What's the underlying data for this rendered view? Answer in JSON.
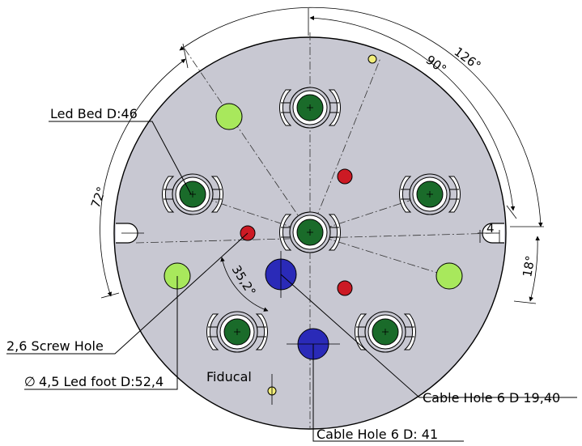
{
  "title": "",
  "plate": {
    "fill_color": "#c8c8d2",
    "outline_color": "#000000"
  },
  "colors": {
    "led_bed_green": "#1a6b2a",
    "led_foot_lightgreen": "#a8e85c",
    "screw_red": "#cc1a24",
    "cable_blue": "#2a2ab8",
    "fiducial_yellow": "#f2ee7a"
  },
  "labels": {
    "led_bed": "Led Bed D:46",
    "screw_hole": "2,6 Screw Hole",
    "led_foot": "4,5 Led foot D:52,4",
    "led_foot_symbol": "∅",
    "fiducial": "Fiducal",
    "cable_hole_a": "Cable Hole 6 D 19,40",
    "cable_hole_b": "Cable Hole 6  D: 41"
  },
  "dimensions": {
    "angle_126": "126°",
    "angle_90": "90°",
    "angle_72": "72°",
    "angle_35_2": "35,2°",
    "angle_18": "18°",
    "slot_width": "4"
  }
}
